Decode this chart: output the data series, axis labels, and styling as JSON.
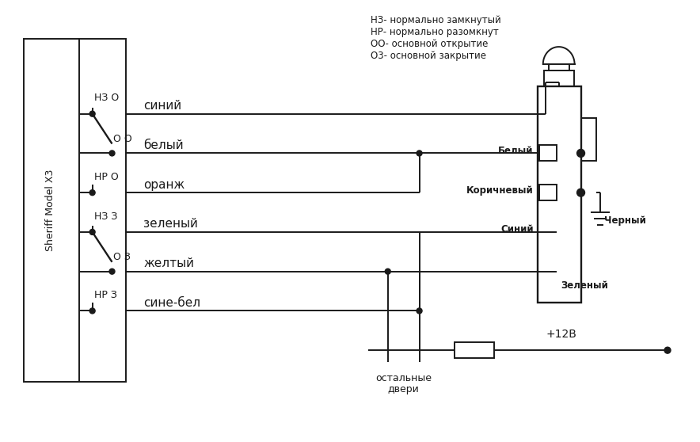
{
  "bg_color": "#ffffff",
  "lc": "#1a1a1a",
  "tc": "#1a1a1a",
  "legend_text": [
    "НЗ- нормально замкнутый",
    "НР- нормально разомкнут",
    "ОО- основной открытие",
    "О3- основной закрытие"
  ],
  "sheriff_label": "Sheriff Model X3",
  "wire_labels": [
    "синий",
    "белый",
    "оранж",
    "зеленый",
    "желтый",
    "сине-бел"
  ],
  "motor_wire_labels": [
    "Белый",
    "Коричневый",
    "Синий",
    "Зеленый",
    "Черный"
  ],
  "bottom_label": [
    "остальные",
    "двери"
  ],
  "power_label": "+12В",
  "figsize": [
    8.84,
    5.58
  ],
  "dpi": 100
}
